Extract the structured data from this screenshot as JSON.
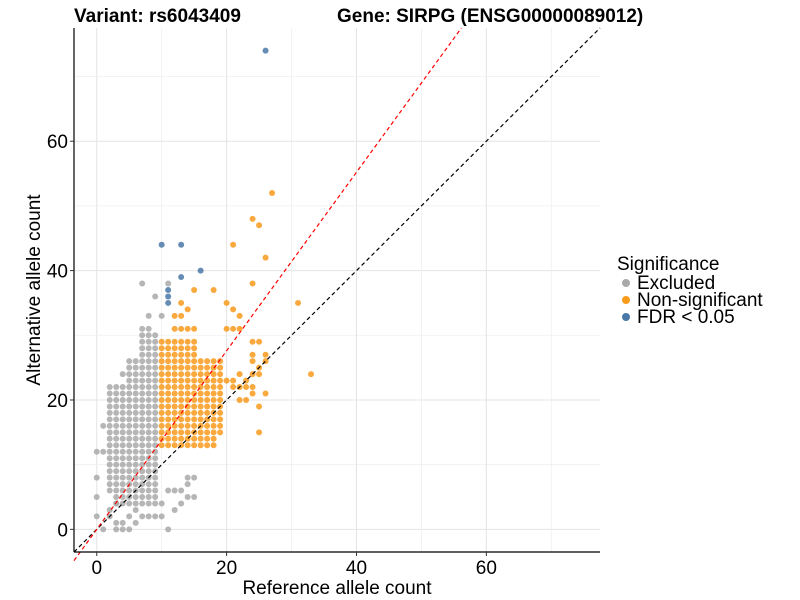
{
  "chart_data": {
    "type": "scatter",
    "title_left": "Variant: rs6043409",
    "title_right": "Gene: SIRPG (ENSG00000089012)",
    "xlabel": "Reference allele count",
    "ylabel": "Alternative allele count",
    "xlim": [
      -3.5,
      77.5
    ],
    "ylim": [
      -3.5,
      77.5
    ],
    "x_ticks": [
      0,
      20,
      40,
      60
    ],
    "y_ticks": [
      0,
      20,
      40,
      60
    ],
    "x_tick_labels": [
      "0",
      "20",
      "40",
      "60"
    ],
    "y_tick_labels": [
      "0",
      "20",
      "40",
      "60"
    ],
    "grid": true,
    "legend": {
      "title": "Significance",
      "position": "right",
      "entries": [
        {
          "label": "Excluded",
          "color": "#a9a9a9"
        },
        {
          "label": "Non-significant",
          "color": "#f89a1c"
        },
        {
          "label": "FDR < 0.05",
          "color": "#4a78a8"
        }
      ]
    },
    "reference_lines": [
      {
        "name": "identity",
        "slope": 1.0,
        "intercept": 0,
        "color": "#000000",
        "style": "dashed"
      },
      {
        "name": "expected-ratio",
        "slope": 1.38,
        "intercept": 0,
        "color": "#ff0000",
        "style": "dashed"
      }
    ],
    "series": [
      {
        "name": "FDR < 0.05",
        "color": "#4a78a8",
        "points": [
          [
            26,
            74
          ],
          [
            10,
            44
          ],
          [
            13,
            44
          ],
          [
            16,
            40
          ],
          [
            13,
            39
          ],
          [
            11,
            37
          ],
          [
            11,
            36
          ],
          [
            11,
            35
          ]
        ]
      },
      {
        "name": "Non-significant",
        "color": "#f89a1c",
        "points": [
          [
            27,
            52
          ],
          [
            24,
            48
          ],
          [
            25,
            47
          ],
          [
            21,
            44
          ],
          [
            26,
            42
          ],
          [
            24,
            38
          ],
          [
            15,
            37
          ],
          [
            18,
            37
          ],
          [
            31,
            35
          ],
          [
            13,
            35
          ],
          [
            20,
            35
          ],
          [
            14,
            34
          ],
          [
            21,
            34
          ],
          [
            12,
            33
          ],
          [
            13,
            33
          ],
          [
            22,
            33
          ],
          [
            12,
            31
          ],
          [
            13,
            31
          ],
          [
            14,
            31
          ],
          [
            15,
            31
          ],
          [
            20,
            31
          ],
          [
            21,
            31
          ],
          [
            22,
            31
          ],
          [
            24,
            29
          ],
          [
            25,
            29
          ],
          [
            26,
            27
          ],
          [
            24,
            27
          ],
          [
            24,
            26
          ],
          [
            25,
            25
          ],
          [
            33,
            24
          ],
          [
            25,
            19
          ],
          [
            25,
            15
          ],
          [
            24,
            22
          ],
          [
            26,
            21
          ],
          [
            21,
            22
          ],
          [
            22,
            22
          ],
          [
            23,
            22
          ],
          [
            20,
            23
          ],
          [
            21,
            23
          ],
          [
            22,
            24
          ],
          [
            24,
            24
          ],
          [
            23,
            23
          ],
          [
            24,
            21
          ],
          [
            22,
            20
          ],
          [
            23,
            20
          ],
          [
            25,
            24
          ],
          [
            26,
            26
          ]
        ],
        "grid_fill": {
          "x_range": [
            10,
            19
          ],
          "y_range": [
            13,
            29
          ]
        }
      },
      {
        "name": "Excluded",
        "color": "#a9a9a9",
        "points": [
          [
            9,
            36
          ],
          [
            7,
            38
          ],
          [
            11,
            38
          ],
          [
            8,
            33
          ],
          [
            10,
            33
          ],
          [
            7,
            31
          ],
          [
            8,
            31
          ],
          [
            4,
            24
          ],
          [
            1,
            16
          ],
          [
            0,
            12
          ],
          [
            1,
            12
          ],
          [
            0,
            8
          ],
          [
            0,
            5
          ],
          [
            2,
            2
          ],
          [
            1,
            0
          ],
          [
            3,
            0
          ],
          [
            11,
            0
          ],
          [
            0,
            2
          ],
          [
            2,
            3
          ],
          [
            3,
            4
          ],
          [
            4,
            0
          ],
          [
            5,
            0
          ],
          [
            6,
            1
          ],
          [
            3,
            1
          ],
          [
            4,
            1
          ],
          [
            7,
            2
          ],
          [
            8,
            2
          ],
          [
            5,
            2
          ],
          [
            6,
            3
          ],
          [
            12,
            3
          ],
          [
            13,
            4
          ],
          [
            14,
            5
          ],
          [
            15,
            5
          ],
          [
            12,
            6
          ],
          [
            13,
            6
          ],
          [
            14,
            7
          ],
          [
            14,
            8
          ],
          [
            15,
            8
          ],
          [
            10,
            4
          ],
          [
            11,
            6
          ],
          [
            9,
            2
          ],
          [
            10,
            2
          ]
        ],
        "grid_fill": {
          "x_range": [
            2,
            9
          ],
          "y_range": [
            4,
            30
          ]
        }
      }
    ]
  }
}
